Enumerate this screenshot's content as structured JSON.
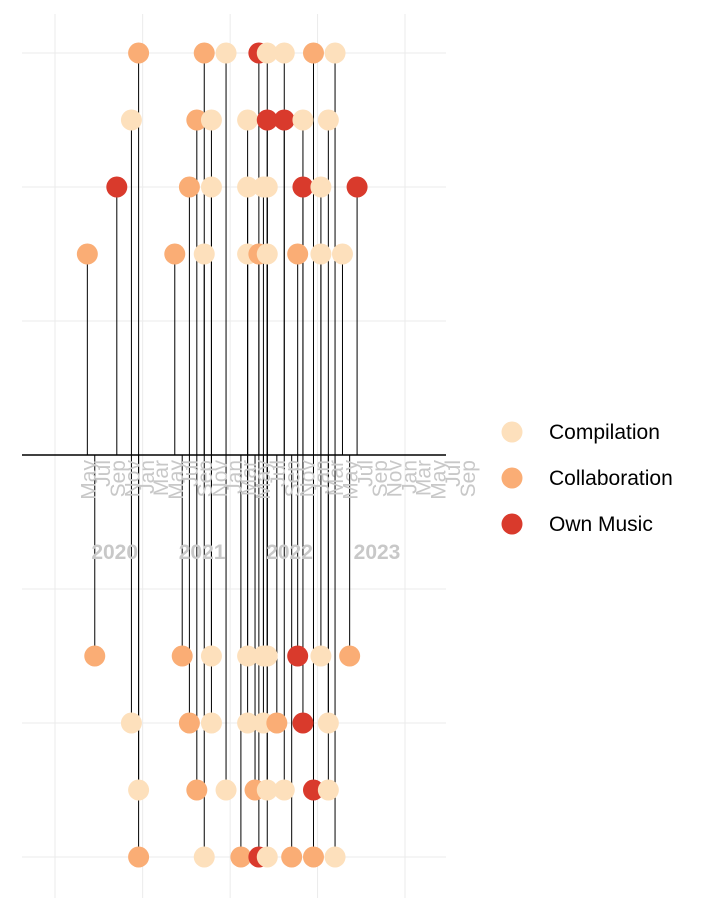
{
  "chart_data": {
    "type": "timeline",
    "legend": {
      "position": "right",
      "entries": [
        {
          "name": "Compilation",
          "color": "#FDE0BC"
        },
        {
          "name": "Collaboration",
          "color": "#FAAD75"
        },
        {
          "name": "Own Music",
          "color": "#D93A2C"
        }
      ]
    },
    "month_ticks": [
      {
        "label": "May",
        "date": "2020-05"
      },
      {
        "label": "Jul",
        "date": "2020-07"
      },
      {
        "label": "Sep",
        "date": "2020-09"
      },
      {
        "label": "Nov",
        "date": "2020-11"
      },
      {
        "label": "Jan",
        "date": "2021-01"
      },
      {
        "label": "Mar",
        "date": "2021-03"
      },
      {
        "label": "May",
        "date": "2021-05"
      },
      {
        "label": "Jul",
        "date": "2021-07"
      },
      {
        "label": "Sep",
        "date": "2021-09"
      },
      {
        "label": "Nov",
        "date": "2021-11"
      },
      {
        "label": "Jan",
        "date": "2022-01"
      },
      {
        "label": "Mar",
        "date": "2022-03"
      },
      {
        "label": "May",
        "date": "2022-05"
      },
      {
        "label": "Jul",
        "date": "2022-07"
      },
      {
        "label": "Sep",
        "date": "2022-09"
      },
      {
        "label": "Nov",
        "date": "2022-11"
      },
      {
        "label": "Jan",
        "date": "2023-01"
      },
      {
        "label": "Mar",
        "date": "2023-03"
      },
      {
        "label": "May",
        "date": "2023-05"
      },
      {
        "label": "Jul",
        "date": "2023-07"
      },
      {
        "label": "Sep",
        "date": "2023-09"
      },
      {
        "label": "Nov",
        "date": "2023-11"
      },
      {
        "label": "Jan",
        "date": "2024-01"
      },
      {
        "label": "Mar",
        "date": "2024-03"
      },
      {
        "label": "May",
        "date": "2024-05"
      },
      {
        "label": "Jul",
        "date": "2024-07"
      },
      {
        "label": "Sep",
        "date": "2024-09"
      }
    ],
    "year_labels": [
      {
        "label": "2020",
        "date": "2021-01"
      },
      {
        "label": "2021",
        "date": "2022-01"
      },
      {
        "label": "2022",
        "date": "2023-01"
      },
      {
        "label": "2023",
        "date": "2024-01"
      }
    ],
    "events": [
      {
        "date": "2020-05-15",
        "level": 3,
        "type": "Collaboration"
      },
      {
        "date": "2020-06-15",
        "level": -3,
        "type": "Collaboration"
      },
      {
        "date": "2020-09-15",
        "level": 4,
        "type": "Own Music"
      },
      {
        "date": "2020-11-15",
        "level": 5,
        "type": "Compilation"
      },
      {
        "date": "2020-11-15",
        "level": -4,
        "type": "Compilation"
      },
      {
        "date": "2020-12-15",
        "level": 6,
        "type": "Collaboration"
      },
      {
        "date": "2020-12-15",
        "level": -5,
        "type": "Compilation"
      },
      {
        "date": "2020-12-15",
        "level": -6,
        "type": "Collaboration"
      },
      {
        "date": "2021-05-15",
        "level": 3,
        "type": "Collaboration"
      },
      {
        "date": "2021-06-15",
        "level": -3,
        "type": "Collaboration"
      },
      {
        "date": "2021-07-15",
        "level": 4,
        "type": "Collaboration"
      },
      {
        "date": "2021-07-15",
        "level": -4,
        "type": "Collaboration"
      },
      {
        "date": "2021-08-15",
        "level": 5,
        "type": "Collaboration"
      },
      {
        "date": "2021-08-15",
        "level": -5,
        "type": "Collaboration"
      },
      {
        "date": "2021-09-15",
        "level": 3,
        "type": "Compilation"
      },
      {
        "date": "2021-09-15",
        "level": 6,
        "type": "Collaboration"
      },
      {
        "date": "2021-09-15",
        "level": -6,
        "type": "Compilation"
      },
      {
        "date": "2021-10-15",
        "level": 4,
        "type": "Compilation"
      },
      {
        "date": "2021-10-15",
        "level": 5,
        "type": "Compilation"
      },
      {
        "date": "2021-10-15",
        "level": -3,
        "type": "Compilation"
      },
      {
        "date": "2021-10-15",
        "level": -4,
        "type": "Compilation"
      },
      {
        "date": "2021-12-15",
        "level": 6,
        "type": "Compilation"
      },
      {
        "date": "2021-12-15",
        "level": -5,
        "type": "Compilation"
      },
      {
        "date": "2022-02-15",
        "level": -6,
        "type": "Collaboration"
      },
      {
        "date": "2022-03-15",
        "level": 3,
        "type": "Compilation"
      },
      {
        "date": "2022-03-15",
        "level": 4,
        "type": "Compilation"
      },
      {
        "date": "2022-03-15",
        "level": 5,
        "type": "Compilation"
      },
      {
        "date": "2022-03-15",
        "level": -3,
        "type": "Compilation"
      },
      {
        "date": "2022-03-15",
        "level": -4,
        "type": "Compilation"
      },
      {
        "date": "2022-04-15",
        "level": -5,
        "type": "Collaboration"
      },
      {
        "date": "2022-05-01",
        "level": 3,
        "type": "Collaboration"
      },
      {
        "date": "2022-05-01",
        "level": 6,
        "type": "Own Music"
      },
      {
        "date": "2022-05-01",
        "level": -6,
        "type": "Own Music"
      },
      {
        "date": "2022-05-20",
        "level": 4,
        "type": "Compilation"
      },
      {
        "date": "2022-05-20",
        "level": -3,
        "type": "Compilation"
      },
      {
        "date": "2022-05-20",
        "level": -4,
        "type": "Compilation"
      },
      {
        "date": "2022-06-05",
        "level": 3,
        "type": "Compilation"
      },
      {
        "date": "2022-06-05",
        "level": 4,
        "type": "Compilation"
      },
      {
        "date": "2022-06-05",
        "level": 5,
        "type": "Own Music"
      },
      {
        "date": "2022-06-05",
        "level": 6,
        "type": "Compilation"
      },
      {
        "date": "2022-06-05",
        "level": -3,
        "type": "Compilation"
      },
      {
        "date": "2022-06-05",
        "level": -5,
        "type": "Compilation"
      },
      {
        "date": "2022-06-05",
        "level": -6,
        "type": "Compilation"
      },
      {
        "date": "2022-07-15",
        "level": -4,
        "type": "Collaboration"
      },
      {
        "date": "2022-08-15",
        "level": 5,
        "type": "Own Music"
      },
      {
        "date": "2022-08-15",
        "level": 6,
        "type": "Compilation"
      },
      {
        "date": "2022-08-15",
        "level": -5,
        "type": "Compilation"
      },
      {
        "date": "2022-09-15",
        "level": -6,
        "type": "Collaboration"
      },
      {
        "date": "2022-10-10",
        "level": 3,
        "type": "Collaboration"
      },
      {
        "date": "2022-10-10",
        "level": -3,
        "type": "Own Music"
      },
      {
        "date": "2022-11-01",
        "level": 4,
        "type": "Own Music"
      },
      {
        "date": "2022-11-01",
        "level": 5,
        "type": "Compilation"
      },
      {
        "date": "2022-11-01",
        "level": -4,
        "type": "Own Music"
      },
      {
        "date": "2022-12-15",
        "level": 6,
        "type": "Collaboration"
      },
      {
        "date": "2022-12-15",
        "level": -5,
        "type": "Own Music"
      },
      {
        "date": "2022-12-15",
        "level": -6,
        "type": "Collaboration"
      },
      {
        "date": "2023-01-15",
        "level": 3,
        "type": "Compilation"
      },
      {
        "date": "2023-01-15",
        "level": 4,
        "type": "Compilation"
      },
      {
        "date": "2023-01-15",
        "level": -3,
        "type": "Compilation"
      },
      {
        "date": "2023-02-15",
        "level": 5,
        "type": "Compilation"
      },
      {
        "date": "2023-02-15",
        "level": -4,
        "type": "Compilation"
      },
      {
        "date": "2023-02-15",
        "level": -5,
        "type": "Compilation"
      },
      {
        "date": "2023-03-15",
        "level": 6,
        "type": "Compilation"
      },
      {
        "date": "2023-03-15",
        "level": -6,
        "type": "Compilation"
      },
      {
        "date": "2023-04-15",
        "level": 3,
        "type": "Compilation"
      },
      {
        "date": "2023-05-15",
        "level": -3,
        "type": "Collaboration"
      },
      {
        "date": "2023-06-15",
        "level": 4,
        "type": "Own Music"
      }
    ]
  }
}
